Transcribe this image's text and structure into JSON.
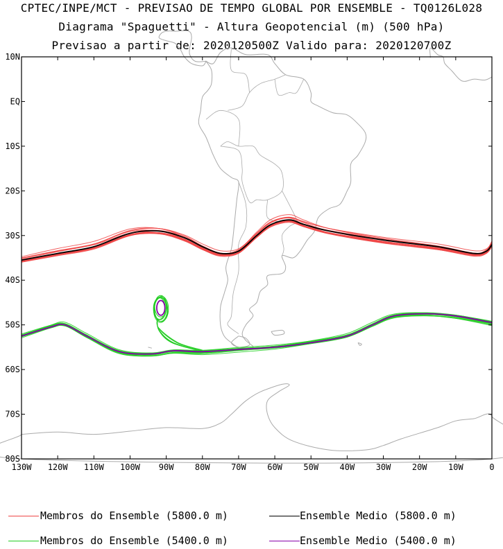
{
  "title": {
    "line1": "CPTEC/INPE/MCT - PREVISAO DE TEMPO GLOBAL POR ENSEMBLE - TQ0126L028",
    "line2": "Diagrama \"Spaguetti\" - Altura Geopotencial (m) (500 hPa)",
    "line3": "Previsao a partir de: 2020120500Z  Valido para: 2020120700Z"
  },
  "axes": {
    "lat_labels": [
      "10N",
      "EQ",
      "10S",
      "20S",
      "30S",
      "40S",
      "50S",
      "60S",
      "70S",
      "80S"
    ],
    "lat_values": [
      10,
      0,
      -10,
      -20,
      -30,
      -40,
      -50,
      -60,
      -70,
      -80
    ],
    "lon_labels": [
      "130W",
      "120W",
      "110W",
      "100W",
      "90W",
      "80W",
      "70W",
      "60W",
      "50W",
      "40W",
      "30W",
      "20W",
      "10W",
      "0"
    ],
    "lon_values": [
      -130,
      -120,
      -110,
      -100,
      -90,
      -80,
      -70,
      -60,
      -50,
      -40,
      -30,
      -20,
      -10,
      0
    ],
    "lat_range": [
      -80,
      10
    ],
    "lon_range": [
      -130,
      0
    ]
  },
  "colors": {
    "member_5800": "#ee4444",
    "mean_5800": "#000000",
    "member_5400": "#22cc22",
    "mean_5400": "#8800aa",
    "coast": "#aaaaaa"
  },
  "contours": {
    "mean_5800": [
      [
        -130,
        -35.5
      ],
      [
        -120,
        -34
      ],
      [
        -110,
        -32.5
      ],
      [
        -100,
        -29.5
      ],
      [
        -92,
        -29
      ],
      [
        -85,
        -30.5
      ],
      [
        -80,
        -32.5
      ],
      [
        -75,
        -34
      ],
      [
        -70,
        -33.5
      ],
      [
        -65,
        -30
      ],
      [
        -61,
        -27.5
      ],
      [
        -56,
        -26.5
      ],
      [
        -52,
        -27.5
      ],
      [
        -45,
        -29
      ],
      [
        -30,
        -31
      ],
      [
        -15,
        -32.5
      ],
      [
        -5,
        -34
      ],
      [
        -1.5,
        -33.5
      ],
      [
        0,
        -32
      ]
    ],
    "mean_5400": [
      [
        -130,
        -52.5
      ],
      [
        -122,
        -50.5
      ],
      [
        -118,
        -50
      ],
      [
        -112,
        -52.5
      ],
      [
        -103,
        -56
      ],
      [
        -94,
        -56.5
      ],
      [
        -88,
        -55.8
      ],
      [
        -80,
        -56
      ],
      [
        -70,
        -55.5
      ],
      [
        -60,
        -55
      ],
      [
        -50,
        -54
      ],
      [
        -40,
        -52.5
      ],
      [
        -33,
        -50
      ],
      [
        -27,
        -48
      ],
      [
        -18,
        -47.5
      ],
      [
        -10,
        -48
      ],
      [
        0,
        -49.5
      ]
    ],
    "closed_low_5400": {
      "lon": -91.5,
      "lat": -46.2,
      "lon_radius": 1.5,
      "lat_radius": 2.2
    },
    "ensemble_members": 14
  },
  "legend": {
    "member_5800": "Membros do Ensemble (5800.0 m)",
    "mean_5800": "Ensemble Medio (5800.0 m)",
    "member_5400": "Membros do Ensemble (5400.0 m)",
    "mean_5400": "Ensemble Medio (5400.0 m)"
  }
}
